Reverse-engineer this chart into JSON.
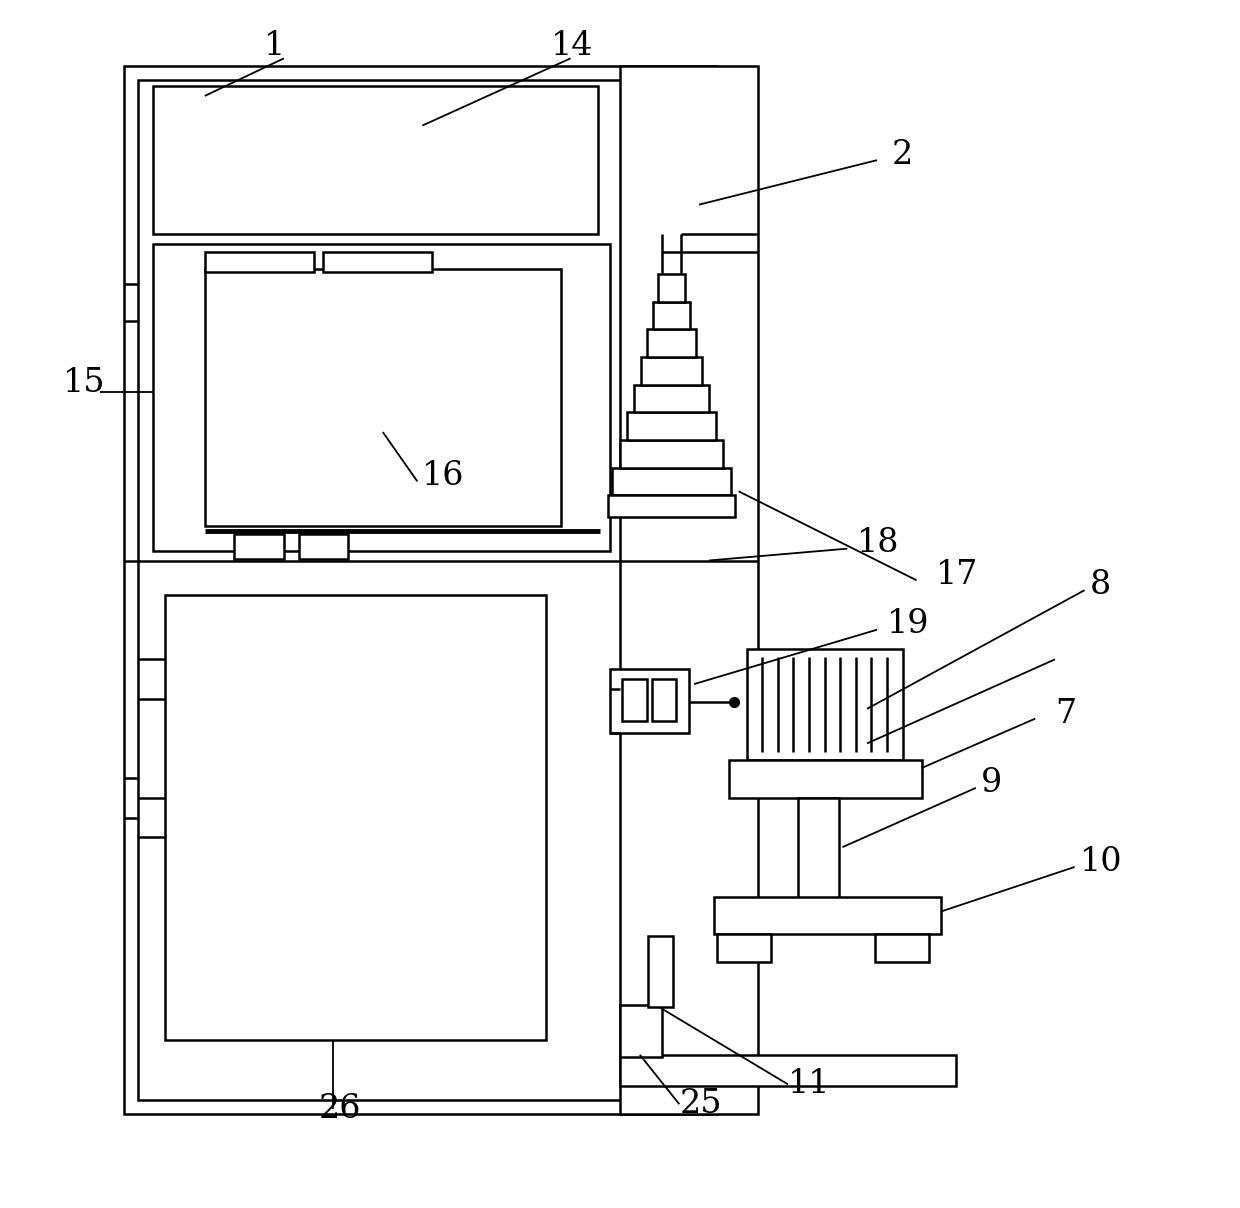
{
  "bg_color": "#ffffff",
  "line_color": "#000000",
  "lw": 1.8,
  "lw_thick": 3.5,
  "fig_width": 12.4,
  "fig_height": 12.08
}
